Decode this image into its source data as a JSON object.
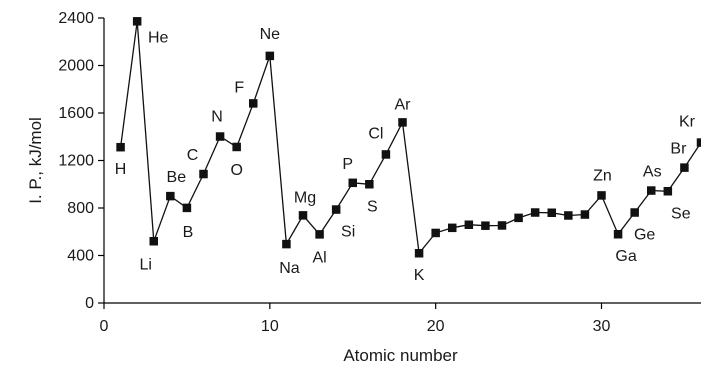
{
  "chart_data": {
    "type": "line",
    "xlabel": "Atomic number",
    "ylabel": "I. P., kJ/mol",
    "xlim": [
      0,
      36
    ],
    "ylim": [
      0,
      2400
    ],
    "x_ticks": [
      0,
      10,
      20,
      30
    ],
    "y_ticks": [
      0,
      400,
      800,
      1200,
      1600,
      2000,
      2400
    ],
    "grid": false,
    "legend": "none",
    "series": [
      {
        "points": [
          {
            "x": 1,
            "y": 1312,
            "label": "H"
          },
          {
            "x": 2,
            "y": 2372,
            "label": "He"
          },
          {
            "x": 3,
            "y": 520,
            "label": "Li"
          },
          {
            "x": 4,
            "y": 900,
            "label": "Be"
          },
          {
            "x": 5,
            "y": 801,
            "label": "B"
          },
          {
            "x": 6,
            "y": 1086,
            "label": "C"
          },
          {
            "x": 7,
            "y": 1402,
            "label": "N"
          },
          {
            "x": 8,
            "y": 1314,
            "label": "O"
          },
          {
            "x": 9,
            "y": 1681,
            "label": "F"
          },
          {
            "x": 10,
            "y": 2081,
            "label": "Ne"
          },
          {
            "x": 11,
            "y": 496,
            "label": "Na"
          },
          {
            "x": 12,
            "y": 738,
            "label": "Mg"
          },
          {
            "x": 13,
            "y": 578,
            "label": "Al"
          },
          {
            "x": 14,
            "y": 787,
            "label": "Si"
          },
          {
            "x": 15,
            "y": 1012,
            "label": "P"
          },
          {
            "x": 16,
            "y": 1000,
            "label": "S"
          },
          {
            "x": 17,
            "y": 1251,
            "label": "Cl"
          },
          {
            "x": 18,
            "y": 1521,
            "label": "Ar"
          },
          {
            "x": 19,
            "y": 419,
            "label": "K"
          },
          {
            "x": 20,
            "y": 590,
            "label": ""
          },
          {
            "x": 21,
            "y": 633,
            "label": ""
          },
          {
            "x": 22,
            "y": 659,
            "label": ""
          },
          {
            "x": 23,
            "y": 651,
            "label": ""
          },
          {
            "x": 24,
            "y": 653,
            "label": ""
          },
          {
            "x": 25,
            "y": 717,
            "label": ""
          },
          {
            "x": 26,
            "y": 762,
            "label": ""
          },
          {
            "x": 27,
            "y": 760,
            "label": ""
          },
          {
            "x": 28,
            "y": 737,
            "label": ""
          },
          {
            "x": 29,
            "y": 745,
            "label": ""
          },
          {
            "x": 30,
            "y": 906,
            "label": "Zn"
          },
          {
            "x": 31,
            "y": 579,
            "label": "Ga"
          },
          {
            "x": 32,
            "y": 762,
            "label": "Ge"
          },
          {
            "x": 33,
            "y": 947,
            "label": "As"
          },
          {
            "x": 34,
            "y": 941,
            "label": "Se"
          },
          {
            "x": 35,
            "y": 1140,
            "label": "Br"
          },
          {
            "x": 36,
            "y": 1351,
            "label": "Kr"
          }
        ]
      }
    ]
  }
}
